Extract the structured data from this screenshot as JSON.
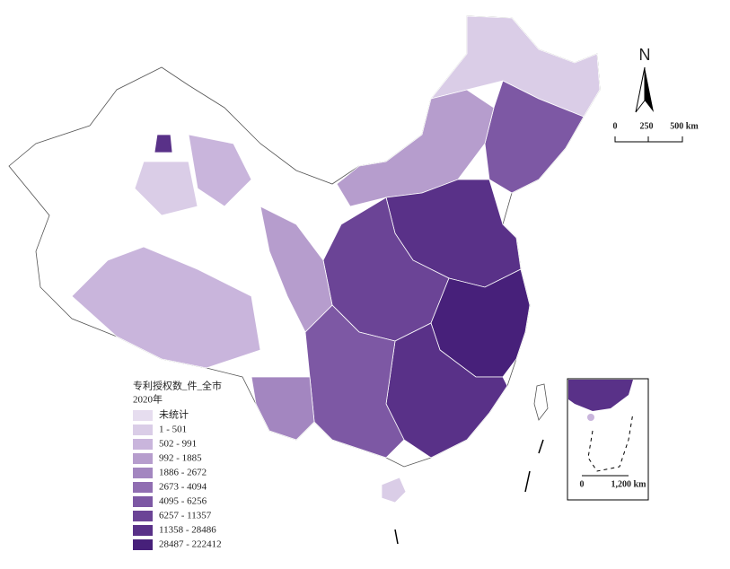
{
  "legend": {
    "title": "专利授权数_件_全市",
    "subtitle": "2020年",
    "items": [
      {
        "label": "未统计",
        "color": "#e6ddef"
      },
      {
        "label": "1 - 501",
        "color": "#dacde7"
      },
      {
        "label": "502 - 991",
        "color": "#c9b5dc"
      },
      {
        "label": "992 - 1885",
        "color": "#b69dcd"
      },
      {
        "label": "1886 - 2672",
        "color": "#a386c0"
      },
      {
        "label": "2673 - 4094",
        "color": "#906eb2"
      },
      {
        "label": "4095 - 6256",
        "color": "#7d58a4"
      },
      {
        "label": "6257 - 11357",
        "color": "#6b4496"
      },
      {
        "label": "11358 - 28486",
        "color": "#593188"
      },
      {
        "label": "28487 - 222412",
        "color": "#47207a"
      }
    ]
  },
  "north_arrow": {
    "label": "N"
  },
  "scale_bar": {
    "labels": [
      "0",
      "250",
      "500 km"
    ]
  },
  "inset": {
    "scale_labels": [
      "0",
      "1,200 km"
    ]
  }
}
